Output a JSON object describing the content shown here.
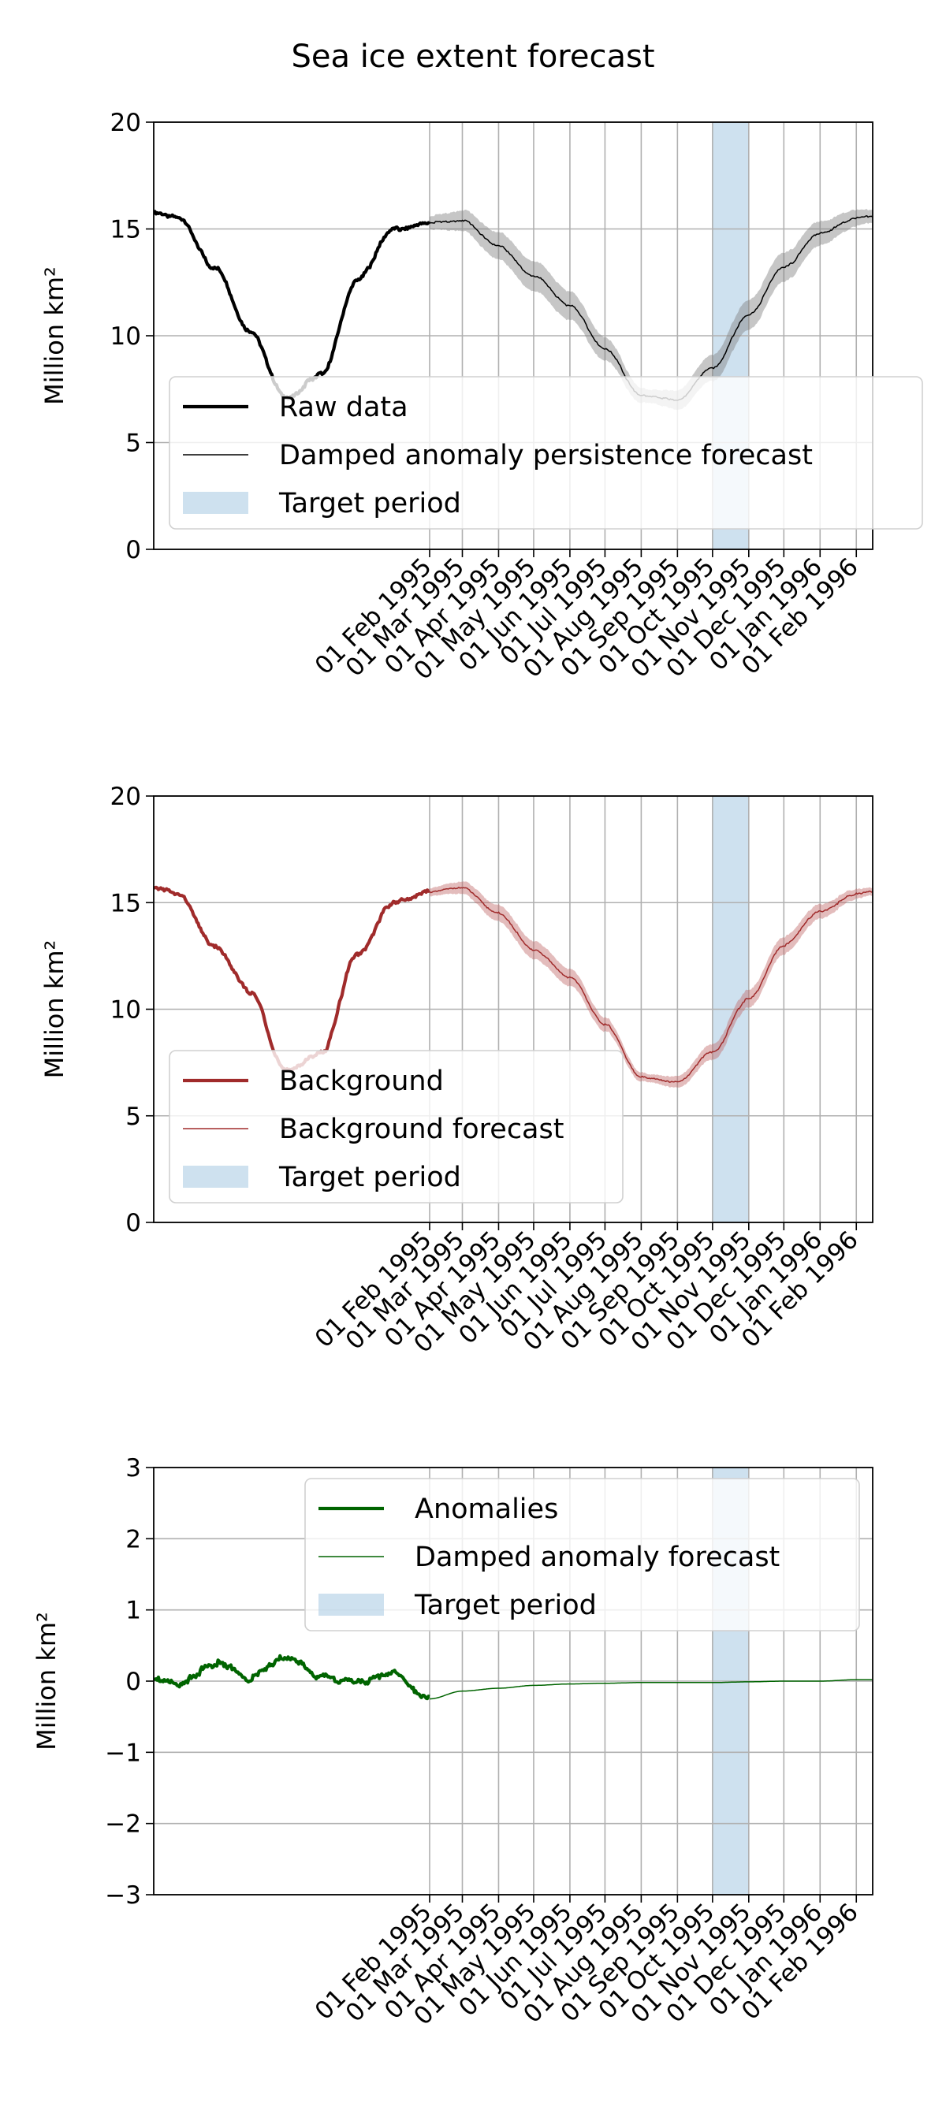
{
  "title": "Sea ice extent forecast",
  "x_ticks": [
    "01 Feb 1995",
    "01 Mar 1995",
    "01 Apr 1995",
    "01 May 1995",
    "01 Jun 1995",
    "01 Jul 1995",
    "01 Aug 1995",
    "01 Sep 1995",
    "01 Oct 1995",
    "01 Nov 1995",
    "01 Dec 1995",
    "01 Jan 1996",
    "01 Feb 1996"
  ],
  "colors": {
    "raw": "#000000",
    "background": "#a02b2b",
    "anomalies": "#006400",
    "target": "#aecde4",
    "grid": "#b0b0b0"
  },
  "chart_data": [
    {
      "type": "line",
      "xlabel": "",
      "ylabel": "Million km²",
      "ylim": [
        0,
        20
      ],
      "yticks": [
        "0",
        "5",
        "10",
        "15",
        "20"
      ],
      "xlim": [
        "1994-06-10",
        "1996-02-15"
      ],
      "grid": "on",
      "legend_placement": "lower-left",
      "target_period": [
        "1995-10-01",
        "1995-11-01"
      ],
      "legend": [
        {
          "label": "Raw data",
          "kind": "line-thick"
        },
        {
          "label": "Damped anomaly persistence forecast",
          "kind": "line-thin"
        },
        {
          "label": "Target period",
          "kind": "patch"
        }
      ],
      "series": [
        {
          "role": "observed",
          "x": [
            "1994-06-10",
            "1994-07-01",
            "1994-08-01",
            "1994-09-01",
            "1994-10-01",
            "1994-11-01",
            "1994-12-01",
            "1995-01-01",
            "1995-02-01"
          ],
          "y": [
            15.8,
            15.5,
            13.2,
            10.2,
            7.1,
            8.2,
            12.6,
            15.0,
            15.3
          ]
        },
        {
          "role": "forecast",
          "x": [
            "1995-02-01",
            "1995-03-01",
            "1995-04-01",
            "1995-05-01",
            "1995-06-01",
            "1995-07-01",
            "1995-08-01",
            "1995-09-01",
            "1995-10-01",
            "1995-11-01",
            "1995-12-01",
            "1996-01-01",
            "1996-02-01",
            "1996-02-15"
          ],
          "y": [
            15.3,
            15.4,
            14.2,
            12.8,
            11.4,
            9.4,
            7.2,
            7.0,
            8.5,
            11.0,
            13.2,
            14.8,
            15.5,
            15.6
          ],
          "band": 0.5
        }
      ]
    },
    {
      "type": "line",
      "xlabel": "",
      "ylabel": "Million km²",
      "ylim": [
        0,
        20
      ],
      "yticks": [
        "0",
        "5",
        "10",
        "15",
        "20"
      ],
      "xlim": [
        "1994-06-10",
        "1996-02-15"
      ],
      "grid": "on",
      "legend_placement": "lower-left",
      "target_period": [
        "1995-10-01",
        "1995-11-01"
      ],
      "legend": [
        {
          "label": "Background",
          "kind": "line-thick"
        },
        {
          "label": "Background forecast",
          "kind": "line-thin"
        },
        {
          "label": "Target period",
          "kind": "patch"
        }
      ],
      "series": [
        {
          "role": "observed",
          "x": [
            "1994-06-10",
            "1994-07-01",
            "1994-08-01",
            "1994-09-01",
            "1994-10-01",
            "1994-11-01",
            "1994-12-01",
            "1995-01-01",
            "1995-02-01"
          ],
          "y": [
            15.7,
            15.4,
            13.0,
            10.8,
            7.1,
            8.0,
            12.6,
            15.0,
            15.5
          ]
        },
        {
          "role": "forecast",
          "x": [
            "1995-02-01",
            "1995-03-01",
            "1995-04-01",
            "1995-05-01",
            "1995-06-01",
            "1995-07-01",
            "1995-08-01",
            "1995-09-01",
            "1995-10-01",
            "1995-11-01",
            "1995-12-01",
            "1996-01-01",
            "1996-02-01",
            "1996-02-15"
          ],
          "y": [
            15.5,
            15.7,
            14.5,
            12.8,
            11.5,
            9.3,
            6.8,
            6.6,
            8.0,
            10.5,
            13.0,
            14.6,
            15.4,
            15.5
          ],
          "band": 0.3
        }
      ]
    },
    {
      "type": "line",
      "xlabel": "",
      "ylabel": "Million km²",
      "ylim": [
        -3,
        3
      ],
      "yticks": [
        "−3",
        "−2",
        "−1",
        "0",
        "1",
        "2",
        "3"
      ],
      "xlim": [
        "1994-06-10",
        "1996-02-15"
      ],
      "grid": "on",
      "legend_placement": "upper-right",
      "target_period": [
        "1995-10-01",
        "1995-11-01"
      ],
      "legend": [
        {
          "label": "Anomalies",
          "kind": "line-thick"
        },
        {
          "label": "Damped anomaly forecast",
          "kind": "line-thin"
        },
        {
          "label": "Target period",
          "kind": "patch"
        }
      ],
      "series": [
        {
          "role": "observed",
          "x": [
            "1994-06-10",
            "1994-07-01",
            "1994-08-01",
            "1994-09-01",
            "1994-10-01",
            "1994-11-01",
            "1994-12-01",
            "1995-01-01",
            "1995-02-01"
          ],
          "y": [
            0.05,
            -0.05,
            0.25,
            0.05,
            0.35,
            0.05,
            0.0,
            0.1,
            -0.25
          ]
        },
        {
          "role": "forecast",
          "x": [
            "1995-02-01",
            "1995-03-01",
            "1995-04-01",
            "1995-05-01",
            "1995-06-01",
            "1995-07-01",
            "1995-08-01",
            "1995-09-01",
            "1995-10-01",
            "1995-11-01",
            "1995-12-01",
            "1996-01-01",
            "1996-02-01",
            "1996-02-15"
          ],
          "y": [
            -0.25,
            -0.14,
            -0.1,
            -0.06,
            -0.04,
            -0.03,
            -0.02,
            -0.02,
            -0.02,
            -0.01,
            0.0,
            0.0,
            0.02,
            0.02
          ],
          "band": 0.0
        }
      ]
    }
  ]
}
